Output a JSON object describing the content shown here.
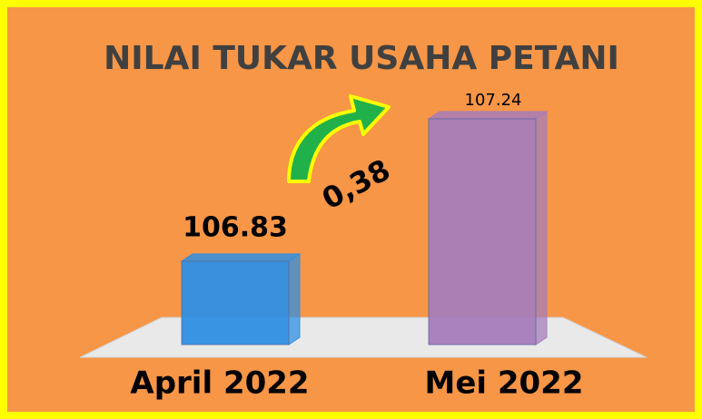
{
  "chart_data": {
    "type": "bar",
    "title": "NILAI TUKAR USAHA PETANI",
    "categories": [
      "April 2022",
      "Mei 2022"
    ],
    "values": [
      106.83,
      107.24
    ],
    "colors": [
      "#2f8fe3",
      "#a77cba"
    ],
    "ylim": [
      106.59,
      107.3
    ],
    "annotation": "0,38"
  }
}
